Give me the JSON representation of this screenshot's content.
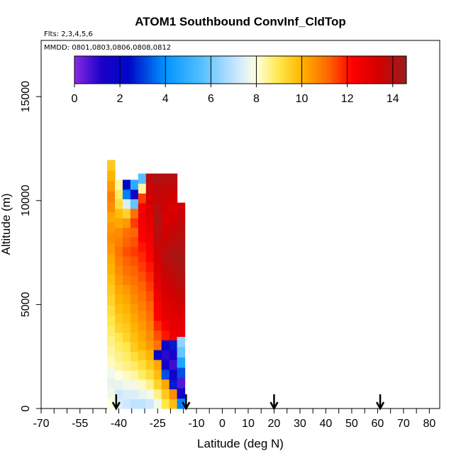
{
  "chart_data": {
    "type": "heatmap",
    "title": "ATOM1 Southbound ConvInf_CldTop",
    "flights_label": "Flts: 2,3,4,5,6",
    "dates_label": "MMDD: 0801,0803,0806,0808,0812",
    "xlabel": "Latitude (deg N)",
    "ylabel": "Altitude (m)",
    "xlim": [
      -70,
      84
    ],
    "ylim": [
      0,
      17700
    ],
    "x_tick_labels": [
      "-70",
      "-55",
      "-40",
      "-25",
      "-10",
      "0",
      "10",
      "20",
      "30",
      "40",
      "50",
      "60",
      "70",
      "80"
    ],
    "x_tick_values": [
      -70,
      -55,
      -40,
      -25,
      -10,
      0,
      10,
      20,
      30,
      40,
      50,
      60,
      70,
      80
    ],
    "x_minor_step": 5,
    "y_ticks": [
      0,
      5000,
      10000,
      15000
    ],
    "colorbar": {
      "range": [
        0,
        14.6
      ],
      "ticks": [
        0,
        2,
        4,
        6,
        8,
        10,
        12,
        14
      ],
      "stops": [
        {
          "v": 0,
          "c": "#8a2be2"
        },
        {
          "v": 1.2,
          "c": "#1a00c8"
        },
        {
          "v": 2.4,
          "c": "#0008c8"
        },
        {
          "v": 4.0,
          "c": "#0094ff"
        },
        {
          "v": 5.6,
          "c": "#55c0ff"
        },
        {
          "v": 7.2,
          "c": "#cfe8ff"
        },
        {
          "v": 8.0,
          "c": "#ffffe0"
        },
        {
          "v": 9.0,
          "c": "#ffe84a"
        },
        {
          "v": 10.0,
          "c": "#ffb400"
        },
        {
          "v": 11.2,
          "c": "#ff6400"
        },
        {
          "v": 12.2,
          "c": "#ff0000"
        },
        {
          "v": 13.4,
          "c": "#d20000"
        },
        {
          "v": 14.6,
          "c": "#9b1c1c"
        }
      ]
    },
    "profiles": [
      {
        "lat": -43.0,
        "alt_top": 11950,
        "values": [
          8.0,
          7.8,
          7.6,
          7.8,
          8.2,
          8.4,
          8.6,
          8.8,
          9.0,
          9.2,
          9.4,
          9.6,
          9.8,
          10.0,
          10.2,
          10.4,
          10.6,
          10.4,
          10.2,
          10.6,
          10.8,
          10.4,
          10.0,
          9.6
        ]
      },
      {
        "lat": -40.0,
        "alt_top": 11000,
        "values": [
          7.4,
          7.2,
          7.6,
          8.0,
          8.4,
          8.6,
          8.8,
          9.0,
          9.4,
          9.6,
          9.8,
          10.0,
          10.2,
          10.4,
          10.6,
          10.8,
          11.0,
          10.8,
          10.6,
          10.2,
          9.8,
          9.2,
          8.8,
          8.4
        ]
      },
      {
        "lat": -37.0,
        "alt_top": 11000,
        "values": [
          7.2,
          7.4,
          7.8,
          8.2,
          8.6,
          8.8,
          9.0,
          9.4,
          9.6,
          9.8,
          10.0,
          10.2,
          10.4,
          10.8,
          11.0,
          11.2,
          11.4,
          11.2,
          11.0,
          10.4,
          9.4,
          7.4,
          3.8,
          2.4
        ]
      },
      {
        "lat": -34.0,
        "alt_top": 11000,
        "values": [
          7.0,
          7.4,
          7.8,
          8.4,
          8.8,
          9.2,
          9.6,
          9.8,
          10.0,
          10.2,
          10.4,
          10.6,
          10.8,
          11.0,
          11.2,
          11.4,
          11.6,
          11.4,
          11.2,
          11.6,
          11.0,
          5.8,
          1.6,
          4.8
        ]
      },
      {
        "lat": -31.0,
        "alt_top": 11300,
        "values": [
          7.0,
          7.6,
          8.2,
          8.8,
          9.2,
          9.6,
          10.0,
          10.2,
          10.4,
          10.6,
          10.8,
          11.0,
          11.2,
          11.4,
          11.6,
          11.8,
          12.0,
          12.2,
          12.4,
          12.6,
          12.4,
          11.6,
          8.4,
          5.6
        ]
      },
      {
        "lat": -28.0,
        "alt_top": 11300,
        "values": [
          7.2,
          7.8,
          8.6,
          9.2,
          9.6,
          10.0,
          10.4,
          10.6,
          10.8,
          11.0,
          11.2,
          11.4,
          11.6,
          11.8,
          12.0,
          12.2,
          12.4,
          12.6,
          12.8,
          13.0,
          13.2,
          13.4,
          13.6,
          13.8
        ]
      },
      {
        "lat": -25.0,
        "alt_top": 11300,
        "values": [
          7.8,
          8.6,
          9.4,
          9.8,
          10.2,
          2.4,
          11.0,
          11.4,
          11.8,
          12.2,
          12.4,
          12.6,
          12.8,
          13.0,
          13.2,
          13.4,
          13.6,
          13.8,
          14.0,
          14.2,
          14.0,
          13.6,
          13.8,
          14.2
        ]
      },
      {
        "lat": -22.0,
        "alt_top": 11300,
        "values": [
          9.0,
          9.6,
          10.2,
          3.2,
          1.4,
          1.0,
          2.0,
          12.0,
          12.4,
          12.8,
          13.0,
          13.2,
          13.4,
          13.6,
          13.8,
          14.0,
          13.8,
          13.6,
          13.4,
          13.2,
          13.4,
          13.6,
          13.8,
          14.0
        ]
      },
      {
        "lat": -19.0,
        "alt_top": 11300,
        "values": [
          9.8,
          10.6,
          2.6,
          1.8,
          0.8,
          1.2,
          2.6,
          12.6,
          12.8,
          13.0,
          13.2,
          13.4,
          13.6,
          13.8,
          14.0,
          14.2,
          14.0,
          13.8,
          13.6,
          13.4,
          13.2,
          13.4,
          13.6,
          14.0
        ]
      },
      {
        "lat": -16.0,
        "alt_top": 9900,
        "values": [
          3.8,
          1.6,
          0.6,
          3.2,
          4.6,
          5.8,
          6.4,
          12.8,
          13.0,
          13.2,
          13.6,
          13.8,
          14.0,
          14.2,
          14.4,
          14.2,
          14.0,
          13.8,
          13.6,
          13.4
        ]
      }
    ],
    "arrows_lat": [
      -41,
      -14,
      20,
      61
    ]
  }
}
